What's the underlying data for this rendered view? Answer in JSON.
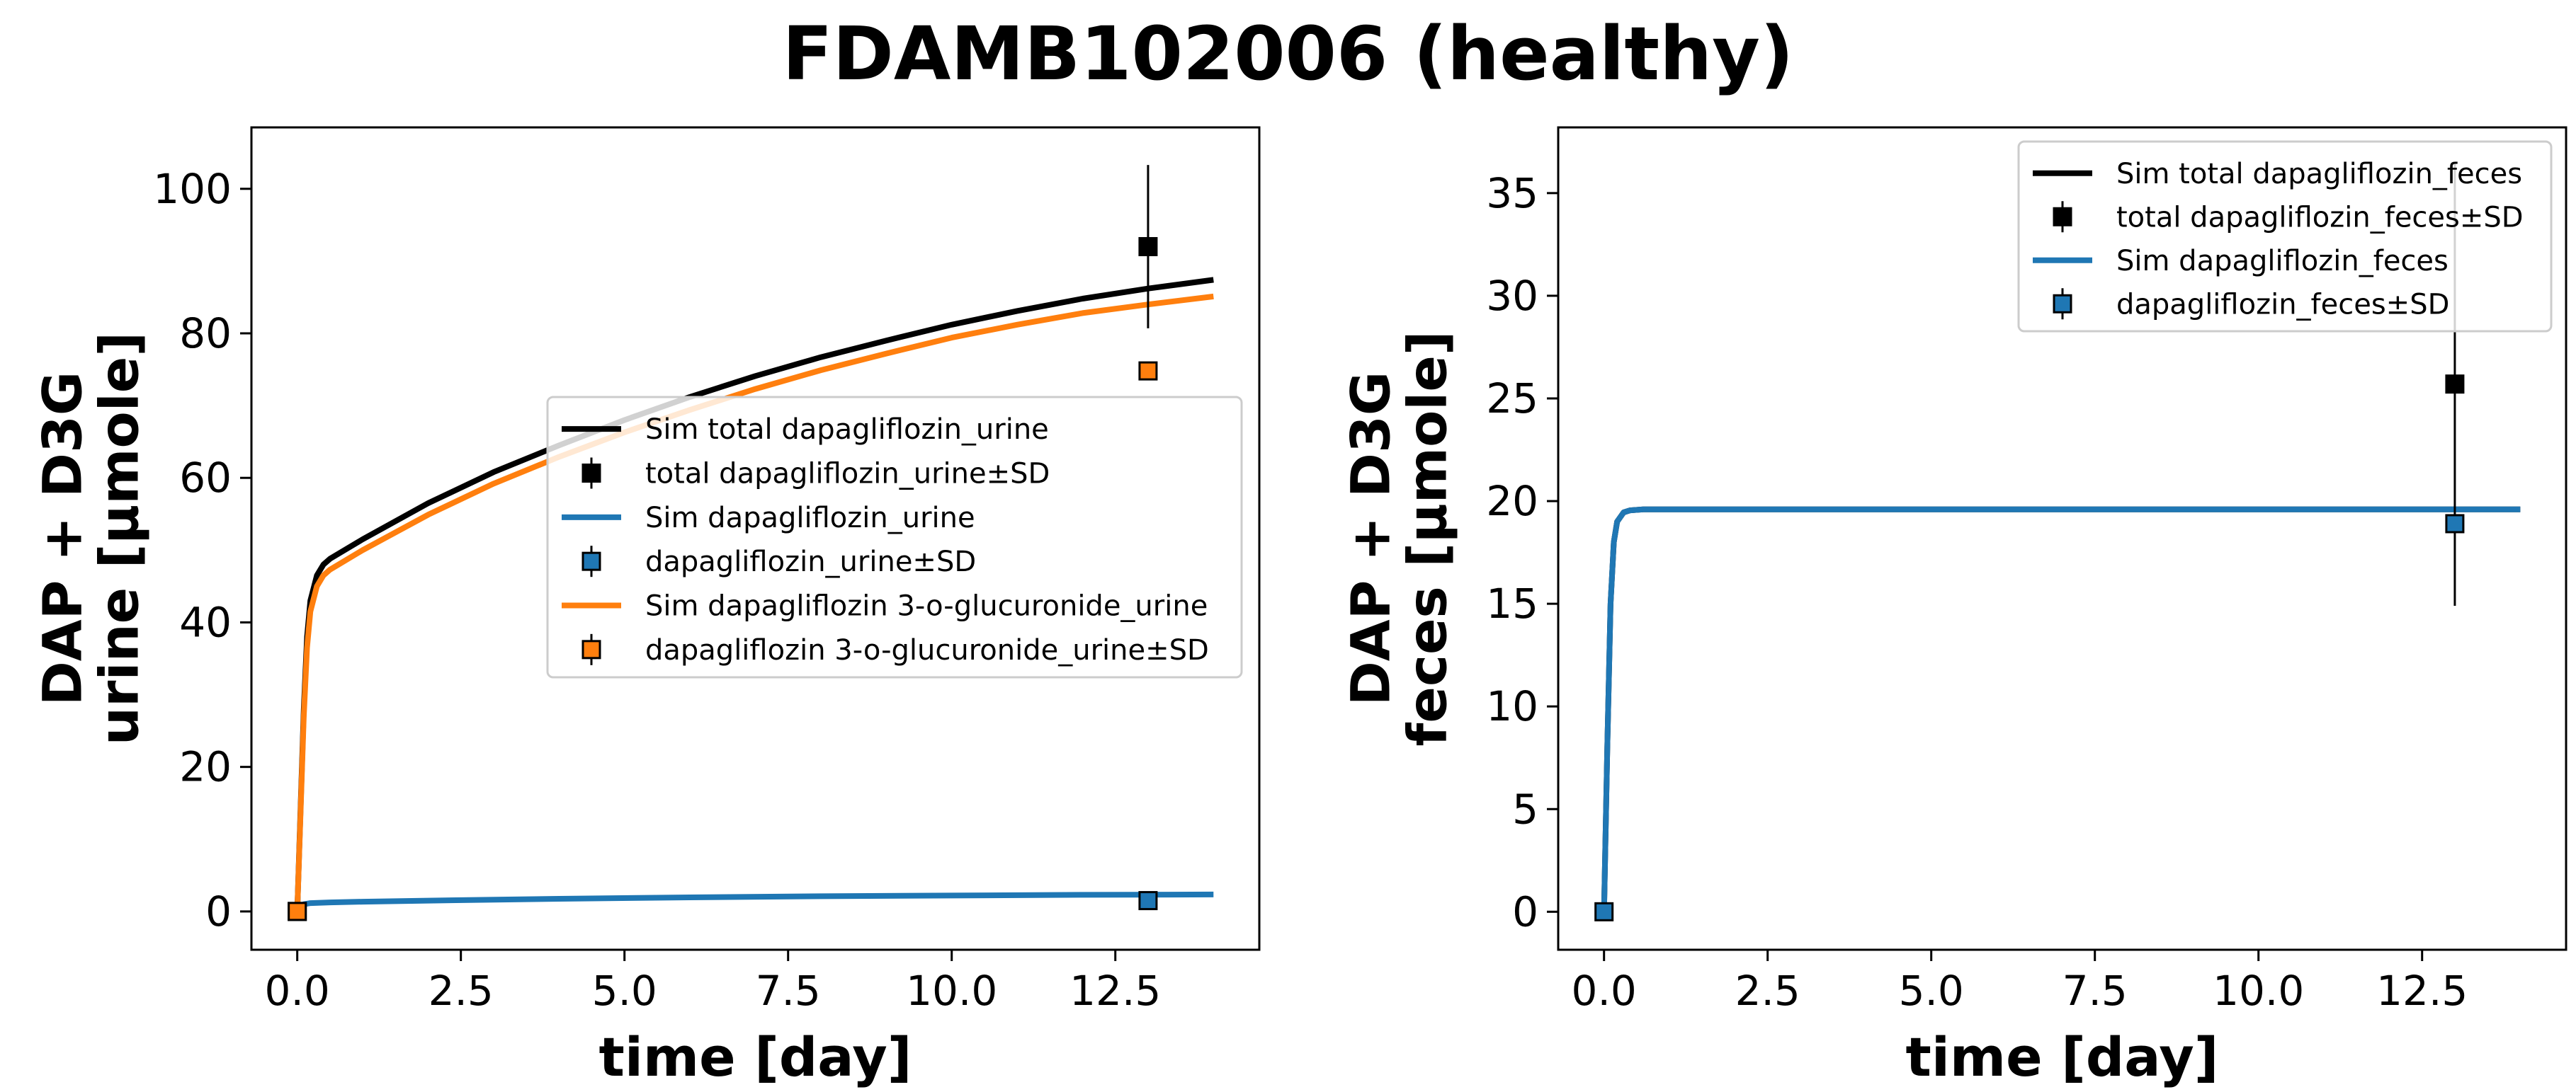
{
  "figure": {
    "title": "FDAMB102006 (healthy)"
  },
  "chart_data": [
    {
      "type": "line",
      "xlabel": "time [day]",
      "ylabel": [
        "DAP + D3G",
        "urine [µmole]"
      ],
      "xlim": [
        -0.7,
        14.7
      ],
      "ylim": [
        -5.3,
        108.5
      ],
      "xticks": [
        0.0,
        2.5,
        5.0,
        7.5,
        10.0,
        12.5
      ],
      "xtick_labels": [
        "0.0",
        "2.5",
        "5.0",
        "7.5",
        "10.0",
        "12.5"
      ],
      "yticks": [
        0,
        20,
        40,
        60,
        80,
        100
      ],
      "ytick_labels": [
        "0",
        "20",
        "40",
        "60",
        "80",
        "100"
      ],
      "grid": false,
      "legend_position": "center-right",
      "series": [
        {
          "name": "Sim total dapagliflozin_urine",
          "kind": "line",
          "color": "#000000",
          "x": [
            0,
            0.05,
            0.1,
            0.15,
            0.2,
            0.3,
            0.4,
            0.5,
            1,
            2,
            3,
            4,
            5,
            6,
            7,
            8,
            9,
            10,
            11,
            12,
            13,
            14
          ],
          "y": [
            0,
            14,
            28,
            38,
            43,
            46.5,
            48,
            48.8,
            51.5,
            56.5,
            60.8,
            64.5,
            68,
            71.2,
            74.1,
            76.7,
            79,
            81.2,
            83.1,
            84.8,
            86.2,
            87.4
          ]
        },
        {
          "name": "total dapagliflozin_urine±SD",
          "kind": "errorbar",
          "color": "#000000",
          "points": [
            {
              "x": 13.0,
              "y": 92.0,
              "sd": 11.3
            }
          ]
        },
        {
          "name": "Sim dapagliflozin_urine",
          "kind": "line",
          "color": "#1f77b4",
          "x": [
            0,
            0.05,
            0.1,
            0.2,
            0.5,
            1,
            2,
            4,
            6,
            8,
            10,
            12,
            14
          ],
          "y": [
            0,
            0.6,
            1.0,
            1.15,
            1.25,
            1.35,
            1.5,
            1.75,
            1.95,
            2.1,
            2.2,
            2.3,
            2.35
          ]
        },
        {
          "name": "dapagliflozin_urine±SD",
          "kind": "errorbar",
          "color": "#1f77b4",
          "points": [
            {
              "x": 0.0,
              "y": 0.0,
              "sd": 0
            },
            {
              "x": 13.0,
              "y": 1.5,
              "sd": 0
            }
          ]
        },
        {
          "name": "Sim dapagliflozin 3-o-glucuronide_urine",
          "kind": "line",
          "color": "#ff7f0e",
          "x": [
            0,
            0.05,
            0.1,
            0.15,
            0.2,
            0.3,
            0.4,
            0.5,
            1,
            2,
            3,
            4,
            5,
            6,
            7,
            8,
            9,
            10,
            11,
            12,
            13,
            14
          ],
          "y": [
            0,
            13.5,
            27,
            36.5,
            41.5,
            45,
            46.5,
            47.3,
            50,
            54.9,
            59.2,
            62.9,
            66.3,
            69.4,
            72.3,
            74.9,
            77.2,
            79.4,
            81.2,
            82.8,
            84,
            85.1
          ]
        },
        {
          "name": "dapagliflozin 3-o-glucuronide_urine±SD",
          "kind": "errorbar",
          "color": "#ff7f0e",
          "points": [
            {
              "x": 0.0,
              "y": 0.0,
              "sd": 0
            },
            {
              "x": 13.0,
              "y": 74.8,
              "sd": 0
            }
          ]
        }
      ]
    },
    {
      "type": "line",
      "xlabel": "time [day]",
      "ylabel": [
        "DAP + D3G",
        "feces [µmole]"
      ],
      "xlim": [
        -0.7,
        14.7
      ],
      "ylim": [
        -1.85,
        38.2
      ],
      "xticks": [
        0.0,
        2.5,
        5.0,
        7.5,
        10.0,
        12.5
      ],
      "xtick_labels": [
        "0.0",
        "2.5",
        "5.0",
        "7.5",
        "10.0",
        "12.5"
      ],
      "yticks": [
        0,
        5,
        10,
        15,
        20,
        25,
        30,
        35
      ],
      "ytick_labels": [
        "0",
        "5",
        "10",
        "15",
        "20",
        "25",
        "30",
        "35"
      ],
      "grid": false,
      "legend_position": "upper-right",
      "series": [
        {
          "name": "Sim total dapagliflozin_feces",
          "kind": "line",
          "color": "#000000",
          "x": [
            0,
            0.05,
            0.1,
            0.15,
            0.2,
            0.3,
            0.4,
            0.6,
            1,
            14
          ],
          "y": [
            0,
            8,
            15,
            18,
            19,
            19.45,
            19.55,
            19.6,
            19.6,
            19.6
          ]
        },
        {
          "name": "total dapagliflozin_feces±SD",
          "kind": "errorbar",
          "color": "#000000",
          "points": [
            {
              "x": 13.0,
              "y": 25.7,
              "sd": 10.8
            }
          ]
        },
        {
          "name": "Sim dapagliflozin_feces",
          "kind": "line",
          "color": "#1f77b4",
          "x": [
            0,
            0.05,
            0.1,
            0.15,
            0.2,
            0.3,
            0.4,
            0.6,
            1,
            14
          ],
          "y": [
            0,
            8,
            15,
            18,
            19,
            19.45,
            19.55,
            19.6,
            19.6,
            19.6
          ]
        },
        {
          "name": "dapagliflozin_feces±SD",
          "kind": "errorbar",
          "color": "#1f77b4",
          "points": [
            {
              "x": 0.0,
              "y": 0.0,
              "sd": 0
            },
            {
              "x": 13.0,
              "y": 18.9,
              "sd": 0
            }
          ]
        }
      ]
    }
  ]
}
